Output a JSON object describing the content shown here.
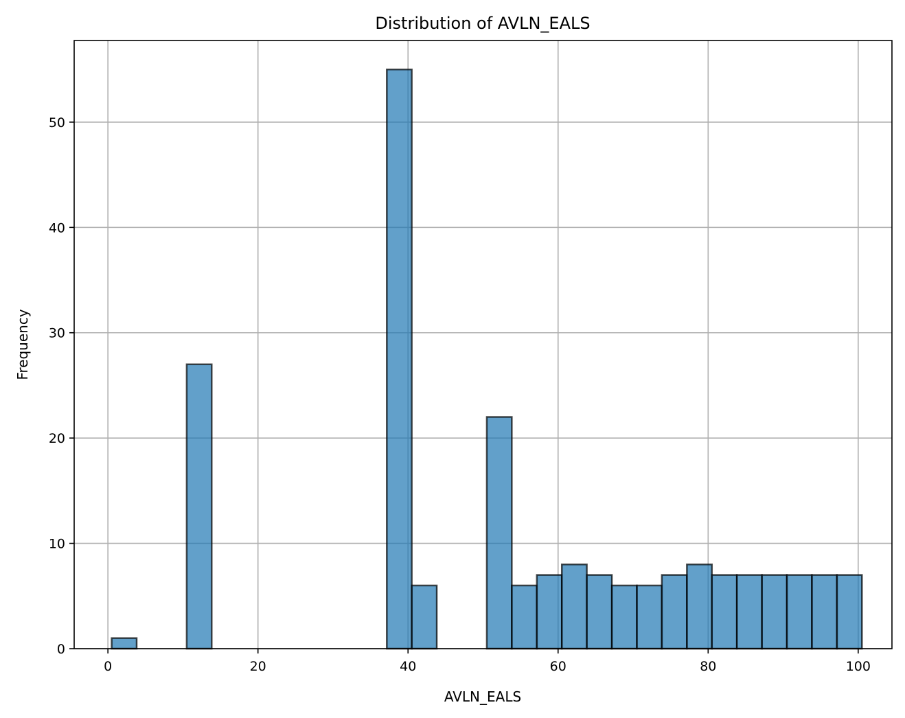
{
  "chart_data": {
    "type": "bar",
    "title": "Distribution of AVLN_EALS",
    "xlabel": "AVLN_EALS",
    "ylabel": "Frequency",
    "xlim": [
      -4.5,
      104.5
    ],
    "ylim": [
      0,
      57.75
    ],
    "xticks": [
      0,
      20,
      40,
      60,
      80,
      100
    ],
    "yticks": [
      0,
      10,
      20,
      30,
      40,
      50
    ],
    "grid": true,
    "bar_color": "#1f77b4",
    "edge_color": "#000000",
    "bins": [
      {
        "start": 0.5,
        "end": 3.83,
        "value": 1
      },
      {
        "start": 3.83,
        "end": 7.17,
        "value": 0
      },
      {
        "start": 7.17,
        "end": 10.5,
        "value": 0
      },
      {
        "start": 10.5,
        "end": 13.83,
        "value": 27
      },
      {
        "start": 13.83,
        "end": 17.17,
        "value": 0
      },
      {
        "start": 17.17,
        "end": 20.5,
        "value": 0
      },
      {
        "start": 20.5,
        "end": 23.83,
        "value": 0
      },
      {
        "start": 23.83,
        "end": 27.17,
        "value": 0
      },
      {
        "start": 27.17,
        "end": 30.5,
        "value": 0
      },
      {
        "start": 30.5,
        "end": 33.83,
        "value": 0
      },
      {
        "start": 33.83,
        "end": 37.17,
        "value": 0
      },
      {
        "start": 37.17,
        "end": 40.5,
        "value": 55
      },
      {
        "start": 40.5,
        "end": 43.83,
        "value": 6
      },
      {
        "start": 43.83,
        "end": 47.17,
        "value": 0
      },
      {
        "start": 47.17,
        "end": 50.5,
        "value": 0
      },
      {
        "start": 50.5,
        "end": 53.83,
        "value": 22
      },
      {
        "start": 53.83,
        "end": 57.17,
        "value": 6
      },
      {
        "start": 57.17,
        "end": 60.5,
        "value": 7
      },
      {
        "start": 60.5,
        "end": 63.83,
        "value": 8
      },
      {
        "start": 63.83,
        "end": 67.17,
        "value": 7
      },
      {
        "start": 67.17,
        "end": 70.5,
        "value": 6
      },
      {
        "start": 70.5,
        "end": 73.83,
        "value": 6
      },
      {
        "start": 73.83,
        "end": 77.17,
        "value": 7
      },
      {
        "start": 77.17,
        "end": 80.5,
        "value": 8
      },
      {
        "start": 80.5,
        "end": 83.83,
        "value": 7
      },
      {
        "start": 83.83,
        "end": 87.17,
        "value": 7
      },
      {
        "start": 87.17,
        "end": 90.5,
        "value": 7
      },
      {
        "start": 90.5,
        "end": 93.83,
        "value": 7
      },
      {
        "start": 93.83,
        "end": 97.17,
        "value": 7
      },
      {
        "start": 97.17,
        "end": 100.5,
        "value": 7
      }
    ]
  }
}
